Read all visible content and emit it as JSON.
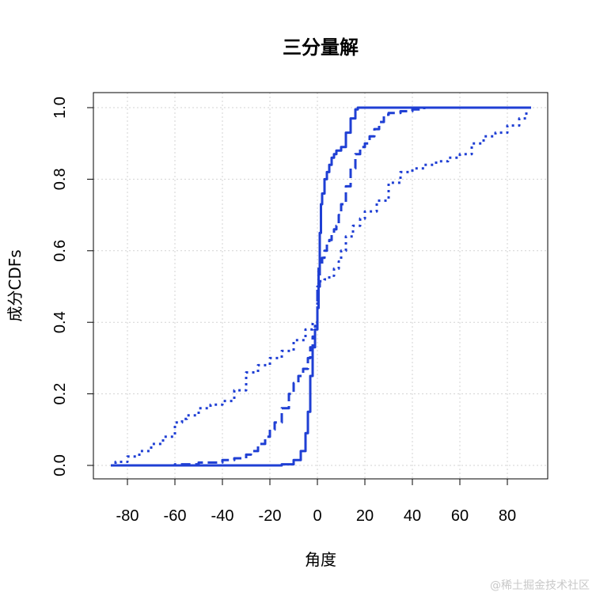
{
  "chart_data": {
    "type": "line",
    "title": "三分量解",
    "xlabel": "角度",
    "ylabel": "成分CDFs",
    "xlim": [
      -90,
      90
    ],
    "ylim": [
      0,
      1
    ],
    "x_ticks": [
      -80,
      -60,
      -40,
      -20,
      0,
      20,
      40,
      60,
      80
    ],
    "x_tick_labels": [
      "-80",
      "-60",
      "-40",
      "-20",
      "0",
      "20",
      "40",
      "60",
      "80"
    ],
    "y_ticks": [
      0,
      0.2,
      0.4,
      0.6,
      0.8,
      1.0
    ],
    "y_tick_labels": [
      "0.0",
      "0.2",
      "0.4",
      "0.6",
      "0.8",
      "1.0"
    ],
    "grid": true,
    "color": "#1f3fd4",
    "series": [
      {
        "style": "solid",
        "x": [
          -87,
          -60,
          -30,
          -20,
          -15,
          -10,
          -7,
          -5,
          -4,
          -3,
          -2,
          -1,
          0,
          0.5,
          1,
          1.5,
          2,
          3,
          4,
          5,
          6,
          7,
          8,
          10,
          12,
          14,
          16,
          17,
          20,
          90
        ],
        "y": [
          0,
          0,
          0,
          0,
          0.003,
          0.015,
          0.04,
          0.09,
          0.15,
          0.25,
          0.33,
          0.38,
          0.44,
          0.55,
          0.65,
          0.73,
          0.76,
          0.8,
          0.82,
          0.84,
          0.86,
          0.87,
          0.88,
          0.89,
          0.93,
          0.97,
          0.995,
          1.0,
          1.0,
          1.0
        ]
      },
      {
        "style": "dashed",
        "x": [
          -87,
          -70,
          -60,
          -50,
          -40,
          -35,
          -30,
          -28,
          -25,
          -22,
          -20,
          -18,
          -15,
          -12,
          -10,
          -8,
          -6,
          -4,
          -3,
          -2,
          -1,
          0,
          1,
          2,
          3,
          4,
          5,
          6,
          7,
          8,
          9,
          10,
          12,
          14,
          16,
          18,
          20,
          22,
          24,
          26,
          28,
          30,
          35,
          40,
          45,
          50,
          90
        ],
        "y": [
          0,
          0,
          0.003,
          0.008,
          0.015,
          0.02,
          0.03,
          0.04,
          0.06,
          0.08,
          0.1,
          0.12,
          0.16,
          0.2,
          0.23,
          0.25,
          0.27,
          0.3,
          0.33,
          0.36,
          0.39,
          0.5,
          0.56,
          0.58,
          0.6,
          0.62,
          0.63,
          0.65,
          0.66,
          0.67,
          0.7,
          0.73,
          0.78,
          0.83,
          0.87,
          0.89,
          0.9,
          0.92,
          0.94,
          0.96,
          0.98,
          0.985,
          0.99,
          0.995,
          1.0,
          1.0,
          1.0
        ]
      },
      {
        "style": "dotted",
        "x": [
          -87,
          -85,
          -80,
          -75,
          -70,
          -65,
          -60,
          -57,
          -55,
          -50,
          -45,
          -40,
          -35,
          -30,
          -25,
          -20,
          -15,
          -10,
          -5,
          -2,
          0,
          1,
          3,
          5,
          7,
          9,
          10,
          12,
          15,
          18,
          20,
          25,
          30,
          35,
          40,
          45,
          50,
          55,
          60,
          65,
          70,
          75,
          80,
          85,
          88
        ],
        "y": [
          0,
          0.01,
          0.025,
          0.04,
          0.06,
          0.08,
          0.12,
          0.13,
          0.14,
          0.16,
          0.17,
          0.18,
          0.21,
          0.26,
          0.28,
          0.3,
          0.32,
          0.35,
          0.38,
          0.4,
          0.5,
          0.515,
          0.52,
          0.53,
          0.55,
          0.57,
          0.6,
          0.64,
          0.67,
          0.69,
          0.71,
          0.74,
          0.79,
          0.82,
          0.83,
          0.84,
          0.85,
          0.86,
          0.87,
          0.9,
          0.92,
          0.93,
          0.95,
          0.97,
          0.99
        ]
      }
    ]
  },
  "watermark": "@稀土掘金技术社区"
}
